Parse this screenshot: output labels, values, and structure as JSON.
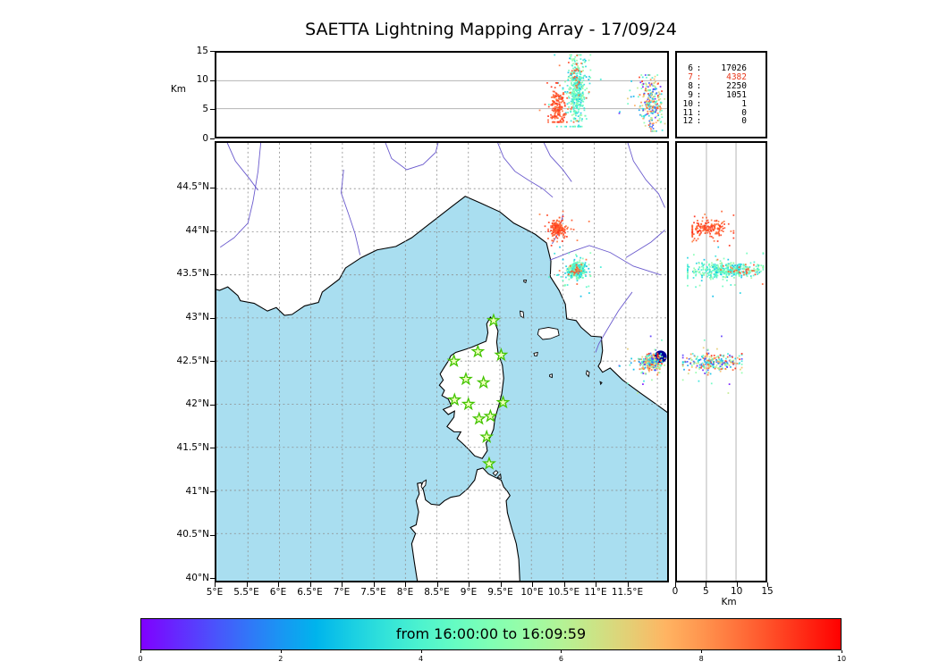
{
  "title": "SAETTA Lightning Mapping Array - 17/09/24",
  "axes": {
    "km_label_top": "Km",
    "km_label_bottom": "Km",
    "top_axis_ticks": [
      "15",
      "10",
      "5",
      "0"
    ],
    "right_axis_ticks": [
      "0",
      "5",
      "10",
      "15"
    ],
    "lat_ticks": [
      "44.5°N",
      "44°N",
      "43.5°N",
      "43°N",
      "42.5°N",
      "42°N",
      "41.5°N",
      "41°N",
      "40.5°N",
      "40°N"
    ],
    "lon_ticks": [
      "5°E",
      "5.5°E",
      "6°E",
      "6.5°E",
      "7°E",
      "7.5°E",
      "8°E",
      "8.5°E",
      "9°E",
      "9.5°E",
      "10°E",
      "10.5°E",
      "11°E",
      "11.5°E"
    ]
  },
  "station_counts": {
    "rows": [
      {
        "level": "6",
        "count": "17026",
        "color": "#000000"
      },
      {
        "level": "7",
        "count": "4382",
        "color": "#e8391d"
      },
      {
        "level": "8",
        "count": "2250",
        "color": "#000000"
      },
      {
        "level": "9",
        "count": "1051",
        "color": "#000000"
      },
      {
        "level": "10",
        "count": "1",
        "color": "#000000"
      },
      {
        "level": "11",
        "count": "0",
        "color": "#000000"
      },
      {
        "level": "12",
        "count": "0",
        "color": "#000000"
      }
    ]
  },
  "colorbar": {
    "label": "from 16:00:00 to 16:09:59",
    "ticks": [
      "0",
      "2",
      "4",
      "6",
      "8",
      "10"
    ],
    "range": [
      0,
      10
    ],
    "colormap": "rainbow"
  },
  "map": {
    "sea_color": "#a9def0",
    "land_color": "#ffffff",
    "river_color": "#6a5acd",
    "grid_color": "#8d8d8d",
    "station_marker": "green-star",
    "annotation_dot_color": "#000099"
  },
  "chart_data": {
    "type": "scatter",
    "title": "SAETTA Lightning Mapping Array - 17/09/24",
    "time_window": {
      "start": "16:00:00",
      "end": "16:09:59",
      "colorbar_minutes": [
        0,
        10
      ]
    },
    "panels": {
      "top": {
        "x": "longitude_deg_E",
        "xlim": [
          5,
          12.15
        ],
        "y": "altitude_km",
        "ylim": [
          0,
          15
        ],
        "yticks": [
          15,
          10,
          5,
          0
        ],
        "grid_alt_km": [
          5,
          10
        ]
      },
      "map": {
        "xlim": [
          5,
          12.15
        ],
        "ylim": [
          39.95,
          45.03
        ],
        "lat_ticks": [
          44.5,
          44,
          43.5,
          43,
          42.5,
          42,
          41.5,
          41,
          40.5,
          40
        ],
        "lon_ticks": [
          5,
          5.5,
          6,
          6.5,
          7,
          7.5,
          8,
          8.5,
          9,
          9.5,
          10,
          10.5,
          11,
          11.5
        ]
      },
      "right": {
        "x": "altitude_km",
        "xlim": [
          0,
          15
        ],
        "xticks": [
          0,
          5,
          10,
          15
        ],
        "y": "latitude_deg_N",
        "grid_alt_km": [
          5,
          10
        ]
      }
    },
    "sources_per_station_count": {
      "6": 17026,
      "7": 4382,
      "8": 2250,
      "9": 1051,
      "10": 1,
      "11": 0,
      "12": 0
    },
    "stations_lon_lat": [
      [
        9.4,
        42.97
      ],
      [
        8.77,
        42.5
      ],
      [
        9.15,
        42.61
      ],
      [
        9.52,
        42.57
      ],
      [
        8.96,
        42.29
      ],
      [
        9.24,
        42.25
      ],
      [
        8.78,
        42.05
      ],
      [
        9.0,
        42.0
      ],
      [
        9.55,
        42.02
      ],
      [
        9.17,
        41.83
      ],
      [
        9.35,
        41.86
      ],
      [
        9.29,
        41.62
      ],
      [
        9.33,
        41.31
      ]
    ],
    "annotation_dot_lon_lat": [
      12.05,
      42.55
    ],
    "clusters": [
      {
        "name": "storm-cell-west",
        "lon": 10.72,
        "lon_sd": 0.065,
        "lat": 43.555,
        "lat_sd": 0.042,
        "alt_mean_km": 8.3,
        "alt_sd_km": 3.2,
        "alt_range_km": [
          1.8,
          14.6
        ],
        "time_min": [
          2.6,
          6.0
        ],
        "n": 430
      },
      {
        "name": "storm-cell-east",
        "lon": 11.9,
        "lon_sd": 0.085,
        "lat": 42.48,
        "lat_sd": 0.048,
        "alt_mean_km": 6.2,
        "alt_sd_km": 2.6,
        "alt_range_km": [
          1.0,
          11.0
        ],
        "time_min": [
          0.2,
          9.7
        ],
        "n": 270
      },
      {
        "name": "storm-cell-west-late",
        "lon": 10.7,
        "lon_sd": 0.05,
        "lat": 43.56,
        "lat_sd": 0.04,
        "alt_mean_km": 11.5,
        "alt_sd_km": 2.0,
        "alt_range_km": [
          6.0,
          14.5
        ],
        "time_min": [
          8.4,
          9.2
        ],
        "n": 28
      },
      {
        "name": "storm-cell-north",
        "lon": 10.42,
        "lon_sd": 0.055,
        "lat": 44.04,
        "lat_sd": 0.045,
        "alt_mean_km": 5.4,
        "alt_sd_km": 1.7,
        "alt_range_km": [
          2.6,
          9.6
        ],
        "time_min": [
          8.3,
          9.5
        ],
        "n": 190
      }
    ]
  }
}
